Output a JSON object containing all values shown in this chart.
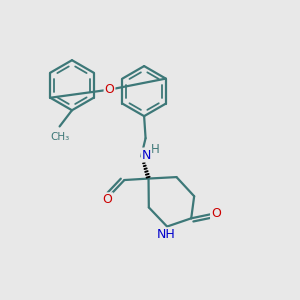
{
  "background_color": "#e8e8e8",
  "bond_color": "#3d7878",
  "bond_width": 1.6,
  "atom_colors": {
    "O": "#cc0000",
    "N": "#0000cc",
    "C": "#3d7878"
  },
  "font_size": 8.5,
  "figsize": [
    3.0,
    3.0
  ],
  "dpi": 100,
  "xlim": [
    0,
    10
  ],
  "ylim": [
    0,
    10
  ]
}
